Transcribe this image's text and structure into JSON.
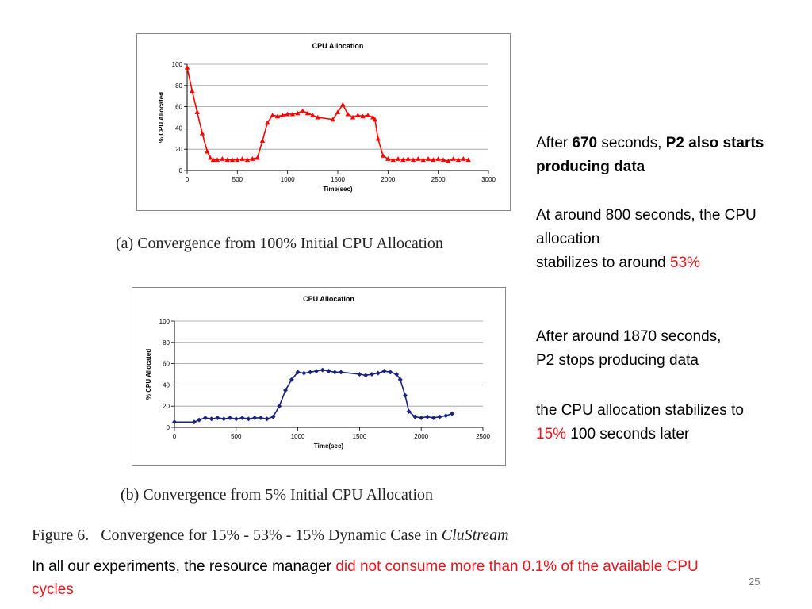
{
  "chart_data": [
    {
      "type": "line",
      "title": "CPU Allocation",
      "xlabel": "Time(sec)",
      "ylabel": "% CPU Allocated",
      "xlim": [
        0,
        3000
      ],
      "ylim": [
        0,
        100
      ],
      "xticks": [
        "0",
        "500",
        "1000",
        "1500",
        "2000",
        "2500",
        "3000"
      ],
      "yticks": [
        "0",
        "20",
        "40",
        "60",
        "80",
        "100"
      ],
      "grid": true,
      "marker": "triangle",
      "color": "#ff0000",
      "series": [
        {
          "x": [
            0,
            50,
            100,
            150,
            200,
            230,
            260,
            300,
            350,
            400,
            450,
            500,
            550,
            600,
            650,
            700,
            750,
            800,
            850,
            900,
            950,
            1000,
            1050,
            1100,
            1150,
            1200,
            1250,
            1300,
            1450,
            1500,
            1550,
            1600,
            1650,
            1700,
            1750,
            1800,
            1850,
            1870,
            1900,
            1950,
            2000,
            2050,
            2100,
            2150,
            2200,
            2250,
            2300,
            2350,
            2400,
            2450,
            2500,
            2550,
            2600,
            2650,
            2700,
            2750,
            2800
          ],
          "y": [
            97,
            75,
            55,
            35,
            18,
            12,
            10,
            10,
            11,
            10,
            10,
            10,
            11,
            10,
            11,
            12,
            28,
            45,
            52,
            51,
            52,
            53,
            53,
            54,
            56,
            54,
            52,
            50,
            48,
            55,
            62,
            53,
            50,
            52,
            51,
            52,
            50,
            48,
            30,
            14,
            11,
            10,
            11,
            10,
            11,
            10,
            11,
            10,
            11,
            10,
            11,
            10,
            9,
            11,
            10,
            11,
            10
          ]
        }
      ]
    },
    {
      "type": "line",
      "title": "CPU Allocation",
      "xlabel": "Time(sec)",
      "ylabel": "% CPU Allocated",
      "xlim": [
        0,
        2500
      ],
      "ylim": [
        0,
        100
      ],
      "xticks": [
        "0",
        "500",
        "1000",
        "1500",
        "2000",
        "2500"
      ],
      "yticks": [
        "0",
        "20",
        "40",
        "60",
        "80",
        "100"
      ],
      "grid": true,
      "marker": "diamond",
      "color": "#1a237e",
      "series": [
        {
          "x": [
            0,
            160,
            200,
            250,
            300,
            350,
            400,
            450,
            500,
            550,
            600,
            650,
            700,
            750,
            800,
            850,
            900,
            950,
            1000,
            1050,
            1100,
            1150,
            1200,
            1250,
            1300,
            1350,
            1500,
            1550,
            1600,
            1650,
            1700,
            1750,
            1800,
            1830,
            1870,
            1900,
            1950,
            2000,
            2050,
            2100,
            2150,
            2200,
            2250
          ],
          "y": [
            5,
            5,
            7,
            9,
            8,
            9,
            8,
            9,
            8,
            9,
            8,
            9,
            9,
            8,
            10,
            20,
            35,
            45,
            52,
            51,
            52,
            53,
            54,
            53,
            52,
            52,
            50,
            49,
            50,
            51,
            53,
            52,
            50,
            45,
            30,
            15,
            10,
            9,
            10,
            9,
            10,
            11,
            13
          ]
        }
      ]
    }
  ],
  "captions": {
    "a": "(a)  Convergence  from  100%  Initial  CPU  Allocation",
    "b": "(b)  Convergence  from  5%  Initial  CPU  Allocation"
  },
  "figure_caption": {
    "label": "Figure 6.",
    "text": "Convergence for 15% - 53% - 15% Dynamic Case in ",
    "italic": "CluStream"
  },
  "notes": {
    "p1": {
      "t1": "After ",
      "b1": "670",
      "t2": " seconds, ",
      "b2": "P2 also starts producing data"
    },
    "p2": {
      "t1": "At around 800 seconds, the CPU allocation",
      "t2": "stabilizes to around ",
      "red": "53%"
    },
    "p3": {
      "t1": "After around 1870 seconds,",
      "t2": "P2 stops producing data"
    },
    "p4": {
      "t1": "the CPU allocation stabilizes to",
      "red": "15%",
      "t2": " 100 seconds later"
    }
  },
  "footnote": {
    "t1": "In all our experiments, the resource manager ",
    "red": "did not consume more than 0.1% of the available CPU cycles"
  },
  "page_number": "25"
}
